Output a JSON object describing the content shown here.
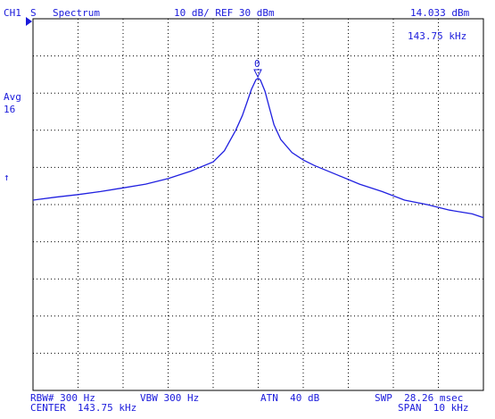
{
  "header": {
    "channel": "CH1",
    "channel_mode": "S",
    "mode": "Spectrum",
    "scale": "10 dB/ REF 30 dBm",
    "marker_value": "14.033 dBm",
    "marker_freq": "143.75 kHz"
  },
  "marker": {
    "label": "0"
  },
  "side": {
    "avg_label": "Avg",
    "avg_count": "16",
    "ref_arrow": "↑"
  },
  "footer": {
    "rbw": "RBW# 300 Hz",
    "vbw": "VBW 300 Hz",
    "atn": "ATN  40 dB",
    "swp": "SWP  28.26 msec",
    "center": "CENTER  143.75 kHz",
    "span": "SPAN  10 kHz"
  },
  "colors": {
    "text": "#1a1adb",
    "trace": "#2020e0",
    "grid": "#000000",
    "frame": "#000000"
  },
  "chart_data": {
    "type": "line",
    "x_unit": "kHz",
    "y_unit": "dBm",
    "xlim": [
      138.75,
      148.75
    ],
    "ylim": [
      -70,
      30
    ],
    "grid": true,
    "x": [
      138.75,
      139.25,
      139.75,
      140.25,
      140.75,
      141.25,
      141.75,
      142.25,
      142.75,
      143.0,
      143.25,
      143.4,
      143.5,
      143.6,
      143.7,
      143.75,
      143.8,
      143.9,
      144.0,
      144.1,
      144.25,
      144.5,
      144.75,
      145.0,
      145.5,
      146.0,
      146.5,
      147.0,
      147.5,
      148.0,
      148.5,
      148.75
    ],
    "y": [
      -18.8,
      -18.0,
      -17.3,
      -16.5,
      -15.5,
      -14.5,
      -13.0,
      -11.0,
      -8.5,
      -5.5,
      0.0,
      4.0,
      7.5,
      11.0,
      13.6,
      14.0,
      13.5,
      10.5,
      6.0,
      1.5,
      -2.5,
      -6.0,
      -8.0,
      -9.5,
      -12.0,
      -14.5,
      -16.5,
      -18.8,
      -20.0,
      -21.5,
      -22.5,
      -23.5
    ]
  }
}
